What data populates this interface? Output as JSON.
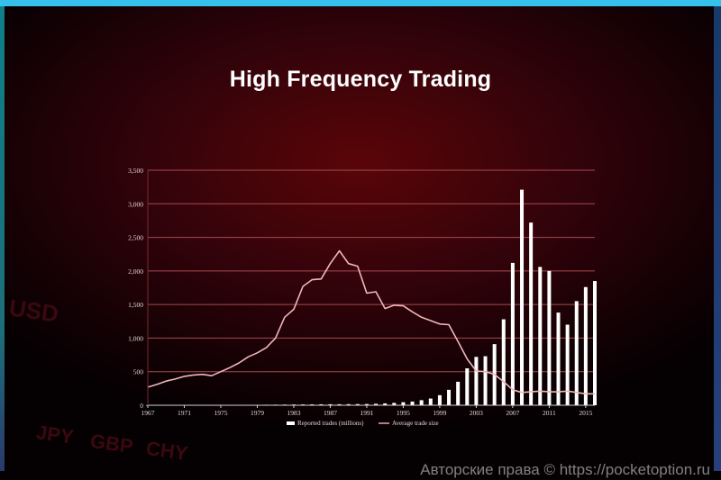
{
  "title": "High Frequency Trading",
  "watermark": "Авторские права © https://pocketoption.ru",
  "background_labels": [
    "USD",
    "JPY",
    "GBP",
    "CHY"
  ],
  "chart_data": {
    "type": "bar",
    "x": [
      1967,
      1968,
      1969,
      1970,
      1971,
      1972,
      1973,
      1974,
      1975,
      1976,
      1977,
      1978,
      1979,
      1980,
      1981,
      1982,
      1983,
      1984,
      1985,
      1986,
      1987,
      1988,
      1989,
      1990,
      1991,
      1992,
      1993,
      1994,
      1995,
      1996,
      1997,
      1998,
      1999,
      2000,
      2001,
      2002,
      2003,
      2004,
      2005,
      2006,
      2007,
      2008,
      2009,
      2010,
      2011,
      2012,
      2013,
      2014,
      2015,
      2016
    ],
    "xticks": [
      1967,
      1971,
      1975,
      1979,
      1983,
      1987,
      1991,
      1995,
      1999,
      2003,
      2007,
      2011,
      2015
    ],
    "ytick_labels": [
      "0",
      "500",
      "1,000",
      "1,500",
      "2,000",
      "2,500",
      "3,000",
      "3,500"
    ],
    "ylim": [
      0,
      3500
    ],
    "grid": true,
    "legend": "bottom-center",
    "series": [
      {
        "name": "Reported trades (millions)",
        "type": "bar",
        "color": "#ffffff",
        "values": [
          2,
          3,
          3,
          3,
          4,
          4,
          4,
          4,
          5,
          5,
          5,
          6,
          7,
          8,
          9,
          10,
          11,
          12,
          13,
          14,
          15,
          15,
          16,
          17,
          18,
          22,
          28,
          35,
          45,
          55,
          75,
          100,
          150,
          230,
          350,
          550,
          720,
          730,
          910,
          1280,
          2120,
          3210,
          2720,
          2060,
          2000,
          1380,
          1200,
          1550,
          1760,
          1850
        ]
      },
      {
        "name": "Average trade size",
        "type": "line",
        "color": "#f0b6bb",
        "values": [
          270,
          310,
          360,
          390,
          430,
          450,
          460,
          440,
          500,
          560,
          630,
          720,
          780,
          860,
          1000,
          1310,
          1430,
          1770,
          1870,
          1880,
          2110,
          2300,
          2110,
          2070,
          1670,
          1690,
          1440,
          1490,
          1480,
          1390,
          1310,
          1260,
          1210,
          1200,
          950,
          690,
          510,
          500,
          460,
          350,
          230,
          190,
          200,
          210,
          200,
          200,
          210,
          190,
          170,
          170
        ]
      }
    ]
  }
}
